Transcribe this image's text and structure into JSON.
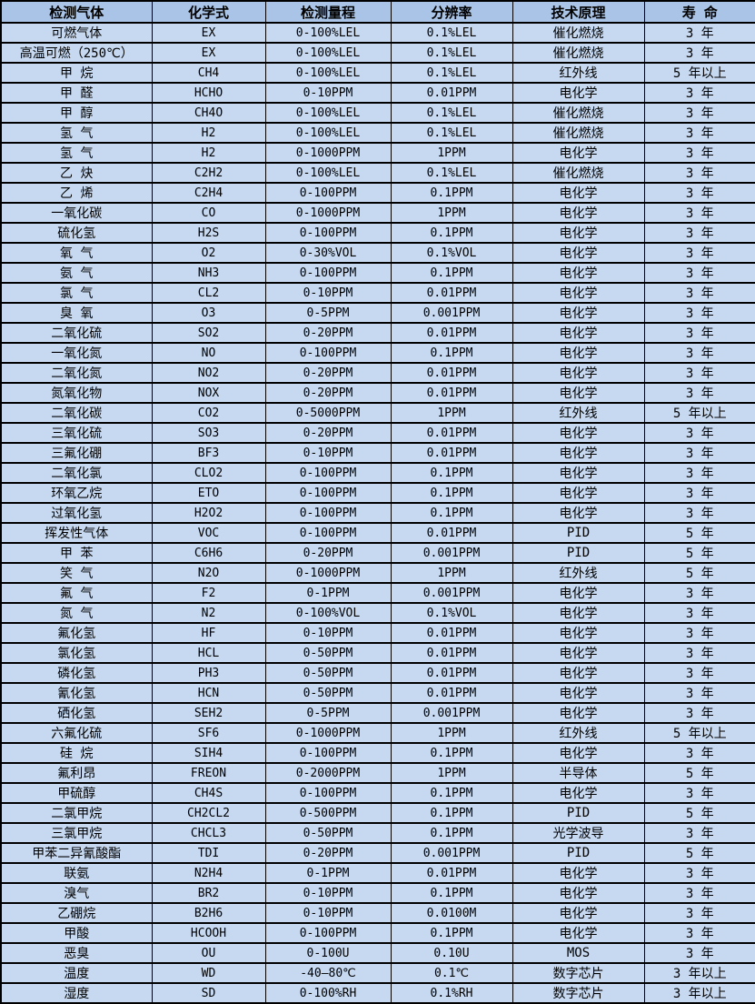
{
  "table": {
    "columns": [
      "检测气体",
      "化学式",
      "检测量程",
      "分辨率",
      "技术原理",
      "寿 命"
    ],
    "column_keys": [
      "gas",
      "formula",
      "range",
      "resolution",
      "principle",
      "lifespan"
    ],
    "rows": [
      [
        "可燃气体",
        "EX",
        "0-100%LEL",
        "0.1%LEL",
        "催化燃烧",
        "3 年"
      ],
      [
        "高温可燃（250℃）",
        "EX",
        "0-100%LEL",
        "0.1%LEL",
        "催化燃烧",
        "3 年"
      ],
      [
        "甲 烷",
        "CH4",
        "0-100%LEL",
        "0.1%LEL",
        "红外线",
        "5 年以上"
      ],
      [
        "甲 醛",
        "HCHO",
        "0-10PPM",
        "0.01PPM",
        "电化学",
        "3 年"
      ],
      [
        "甲 醇",
        "CH4O",
        "0-100%LEL",
        "0.1%LEL",
        "催化燃烧",
        "3 年"
      ],
      [
        "氢 气",
        "H2",
        "0-100%LEL",
        "0.1%LEL",
        "催化燃烧",
        "3 年"
      ],
      [
        "氢 气",
        "H2",
        "0-1000PPM",
        "1PPM",
        "电化学",
        "3 年"
      ],
      [
        "乙 炔",
        "C2H2",
        "0-100%LEL",
        "0.1%LEL",
        "催化燃烧",
        "3 年"
      ],
      [
        "乙 烯",
        "C2H4",
        "0-100PPM",
        "0.1PPM",
        "电化学",
        "3 年"
      ],
      [
        "一氧化碳",
        "CO",
        "0-1000PPM",
        "1PPM",
        "电化学",
        "3 年"
      ],
      [
        "硫化氢",
        "H2S",
        "0-100PPM",
        "0.1PPM",
        "电化学",
        "3 年"
      ],
      [
        "氧 气",
        "O2",
        "0-30%VOL",
        "0.1%VOL",
        "电化学",
        "3 年"
      ],
      [
        "氨 气",
        "NH3",
        "0-100PPM",
        "0.1PPM",
        "电化学",
        "3 年"
      ],
      [
        "氯 气",
        "CL2",
        "0-10PPM",
        "0.01PPM",
        "电化学",
        "3 年"
      ],
      [
        "臭 氧",
        "O3",
        "0-5PPM",
        "0.001PPM",
        "电化学",
        "3 年"
      ],
      [
        "二氧化硫",
        "SO2",
        "0-20PPM",
        "0.01PPM",
        "电化学",
        "3 年"
      ],
      [
        "一氧化氮",
        "NO",
        "0-100PPM",
        "0.1PPM",
        "电化学",
        "3 年"
      ],
      [
        "二氧化氮",
        "NO2",
        "0-20PPM",
        "0.01PPM",
        "电化学",
        "3 年"
      ],
      [
        "氮氧化物",
        "NOX",
        "0-20PPM",
        "0.01PPM",
        "电化学",
        "3 年"
      ],
      [
        "二氧化碳",
        "CO2",
        "0-5000PPM",
        "1PPM",
        "红外线",
        "5 年以上"
      ],
      [
        "三氧化硫",
        "SO3",
        "0-20PPM",
        "0.01PPM",
        "电化学",
        "3 年"
      ],
      [
        "三氟化硼",
        "BF3",
        "0-10PPM",
        "0.01PPM",
        "电化学",
        "3 年"
      ],
      [
        "二氧化氯",
        "CLO2",
        "0-100PPM",
        "0.1PPM",
        "电化学",
        "3 年"
      ],
      [
        "环氧乙烷",
        "ETO",
        "0-100PPM",
        "0.1PPM",
        "电化学",
        "3 年"
      ],
      [
        "过氧化氢",
        "H2O2",
        "0-100PPM",
        "0.1PPM",
        "电化学",
        "3 年"
      ],
      [
        "挥发性气体",
        "VOC",
        "0-100PPM",
        "0.01PPM",
        "PID",
        "5 年"
      ],
      [
        "甲 苯",
        "C6H6",
        "0-20PPM",
        "0.001PPM",
        "PID",
        "5 年"
      ],
      [
        "笑 气",
        "N2O",
        "0-1000PPM",
        "1PPM",
        "红外线",
        "5 年"
      ],
      [
        "氟 气",
        "F2",
        "0-1PPM",
        "0.001PPM",
        "电化学",
        "3 年"
      ],
      [
        "氮 气",
        "N2",
        "0-100%VOL",
        "0.1%VOL",
        "电化学",
        "3 年"
      ],
      [
        "氟化氢",
        "HF",
        "0-10PPM",
        "0.01PPM",
        "电化学",
        "3 年"
      ],
      [
        "氯化氢",
        "HCL",
        "0-50PPM",
        "0.01PPM",
        "电化学",
        "3 年"
      ],
      [
        "磷化氢",
        "PH3",
        "0-50PPM",
        "0.01PPM",
        "电化学",
        "3 年"
      ],
      [
        "氰化氢",
        "HCN",
        "0-50PPM",
        "0.01PPM",
        "电化学",
        "3 年"
      ],
      [
        "硒化氢",
        "SEH2",
        "0-5PPM",
        "0.001PPM",
        "电化学",
        "3 年"
      ],
      [
        "六氟化硫",
        "SF6",
        "0-1000PPM",
        "1PPM",
        "红外线",
        "5 年以上"
      ],
      [
        "硅 烷",
        "SIH4",
        "0-100PPM",
        "0.1PPM",
        "电化学",
        "3 年"
      ],
      [
        "氟利昂",
        "FREON",
        "0-2000PPM",
        "1PPM",
        "半导体",
        "5 年"
      ],
      [
        "甲硫醇",
        "CH4S",
        "0-100PPM",
        "0.1PPM",
        "电化学",
        "3 年"
      ],
      [
        "二氯甲烷",
        "CH2CL2",
        "0-500PPM",
        "0.1PPM",
        "PID",
        "5 年"
      ],
      [
        "三氯甲烷",
        "CHCL3",
        "0-50PPM",
        "0.1PPM",
        "光学波导",
        "3 年"
      ],
      [
        "甲苯二异氰酸酯",
        "TDI",
        "0-20PPM",
        "0.001PPM",
        "PID",
        "5 年"
      ],
      [
        "联氨",
        "N2H4",
        "0-1PPM",
        "0.01PPM",
        "电化学",
        "3 年"
      ],
      [
        "溴气",
        "BR2",
        "0-10PPM",
        "0.1PPM",
        "电化学",
        "3 年"
      ],
      [
        "乙硼烷",
        "B2H6",
        "0-10PPM",
        "0.0100M",
        "电化学",
        "3 年"
      ],
      [
        "甲酸",
        "HCOOH",
        "0-100PPM",
        "0.1PPM",
        "电化学",
        "3 年"
      ],
      [
        "恶臭",
        "OU",
        "0-100U",
        "0.10U",
        "MOS",
        "3 年"
      ],
      [
        "温度",
        "WD",
        "-40—80℃",
        "0.1℃",
        "数字芯片",
        "3 年以上"
      ],
      [
        "湿度",
        "SD",
        "0-100%RH",
        "0.1%RH",
        "数字芯片",
        "3 年以上"
      ]
    ]
  },
  "colors": {
    "header_background": "#a9c4e6",
    "row_background": "#c6d9f1",
    "border": "#000000",
    "text": "#000000"
  }
}
